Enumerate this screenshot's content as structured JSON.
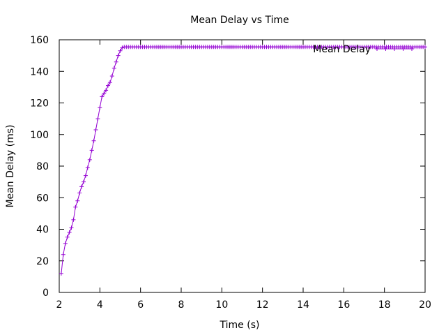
{
  "chart_data": {
    "type": "line",
    "title": "Mean Delay vs Time",
    "xlabel": "Time (s)",
    "ylabel": "Mean Delay (ms)",
    "xlim": [
      2,
      20
    ],
    "ylim": [
      0,
      160
    ],
    "xticks": [
      2,
      4,
      6,
      8,
      10,
      12,
      14,
      16,
      18,
      20
    ],
    "yticks": [
      0,
      20,
      40,
      60,
      80,
      100,
      120,
      140,
      160
    ],
    "grid": false,
    "legend_position": "top-right",
    "series": [
      {
        "name": "Mean Delay",
        "color": "#9400d3",
        "marker": "plus",
        "x": [
          2.1,
          2.2,
          2.3,
          2.4,
          2.5,
          2.6,
          2.7,
          2.8,
          2.9,
          3.0,
          3.1,
          3.2,
          3.3,
          3.4,
          3.5,
          3.6,
          3.7,
          3.8,
          3.9,
          4.0,
          4.1,
          4.2,
          4.3,
          4.4,
          4.5,
          4.6,
          4.7,
          4.8,
          4.9,
          5.0,
          5.1,
          5.2
        ],
        "y": [
          12,
          24,
          31,
          35,
          38,
          41,
          46,
          54,
          58,
          63,
          67,
          70,
          74,
          79,
          84,
          90,
          96,
          103,
          110,
          117,
          124,
          126,
          128,
          131,
          133,
          137,
          142,
          146,
          150,
          153,
          155,
          155.5
        ]
      }
    ],
    "plateau": {
      "from": 5.2,
      "to": 20,
      "y": 155.5,
      "step": 0.1
    }
  }
}
